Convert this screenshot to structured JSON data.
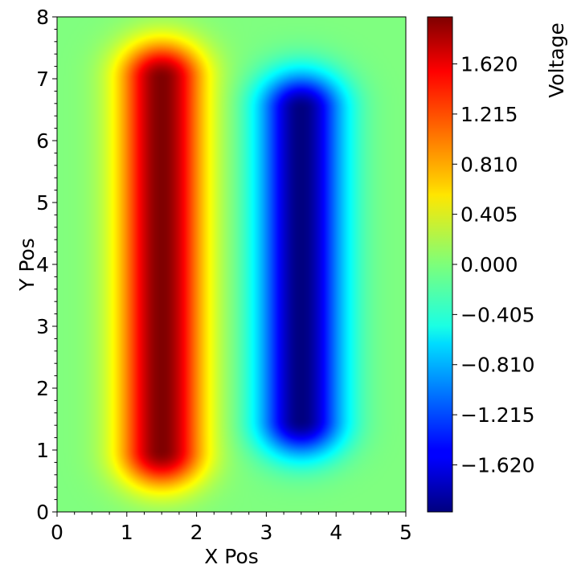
{
  "chart_data": {
    "type": "heatmap",
    "title": "",
    "xlabel": "X Pos",
    "ylabel": "Y Pos",
    "colorbar_label": "Voltage",
    "colormap": "jet",
    "xlim": [
      0,
      5
    ],
    "ylim": [
      0,
      8
    ],
    "x_ticks": [
      0,
      1,
      2,
      3,
      4,
      5
    ],
    "y_ticks": [
      0,
      1,
      2,
      3,
      4,
      5,
      6,
      7,
      8
    ],
    "colorbar_range": [
      -2.0,
      2.0
    ],
    "colorbar_ticks": [
      -1.62,
      -1.215,
      -0.81,
      -0.405,
      0.0,
      0.405,
      0.81,
      1.215,
      1.62
    ],
    "colorbar_tick_labels": [
      "−1.620",
      "−1.215",
      "−0.810",
      "−0.405",
      "0.000",
      "0.405",
      "0.810",
      "1.215",
      "1.620"
    ],
    "grid": false,
    "features": [
      {
        "polarity": "positive",
        "peak_voltage": 2.0,
        "x": 1.5,
        "y_range": [
          1.0,
          7.0
        ]
      },
      {
        "polarity": "negative",
        "peak_voltage": -2.0,
        "x": 3.5,
        "y_range": [
          1.5,
          6.5
        ]
      }
    ]
  }
}
